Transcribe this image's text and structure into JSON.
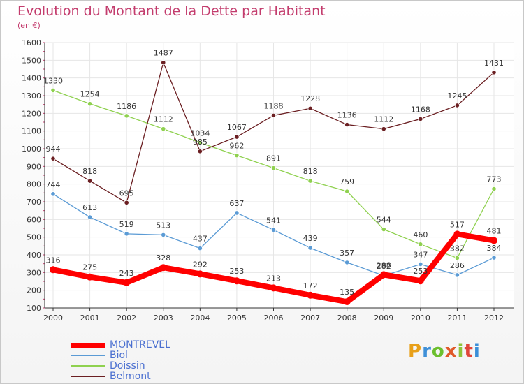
{
  "header": {
    "title": "Evolution du Montant de la Dette par Habitant",
    "subtitle": "(en €)"
  },
  "logo": {
    "text": "Proxiti",
    "colors": [
      "#e8a019",
      "#3f90d8",
      "#6cbf2e",
      "#e05a2a",
      "#8fc33a",
      "#e0453a",
      "#3a8fd8"
    ]
  },
  "colors": {
    "title": "#c33c6d",
    "axis": "#333333",
    "grid": "#e6e6e6"
  },
  "chart_data": {
    "type": "line",
    "title": "Evolution du Montant de la Dette par Habitant",
    "ylabel": "(en €)",
    "xlabel": "",
    "ylim": [
      100,
      1600
    ],
    "yticks": [
      100,
      200,
      300,
      400,
      500,
      600,
      700,
      800,
      900,
      1000,
      1100,
      1200,
      1300,
      1400,
      1500,
      1600
    ],
    "categories": [
      "2000",
      "2001",
      "2002",
      "2003",
      "2004",
      "2005",
      "2006",
      "2007",
      "2008",
      "2009",
      "2010",
      "2011",
      "2012"
    ],
    "grid": true,
    "legend_position": "bottom-left",
    "series": [
      {
        "name": "MONTREVEL",
        "color": "#ff0000",
        "values": [
          316,
          275,
          243,
          328,
          292,
          253,
          213,
          172,
          135,
          288,
          253,
          517,
          481
        ]
      },
      {
        "name": "Biol",
        "color": "#5b9bd5",
        "values": [
          744,
          613,
          519,
          513,
          437,
          637,
          541,
          439,
          357,
          282,
          347,
          286,
          384
        ]
      },
      {
        "name": "Doissin",
        "color": "#8fd14f",
        "values": [
          1330,
          1254,
          1186,
          1112,
          1034,
          962,
          891,
          818,
          759,
          544,
          460,
          382,
          773
        ]
      },
      {
        "name": "Belmont",
        "color": "#6b1f22",
        "values": [
          944,
          818,
          695,
          1487,
          985,
          1067,
          1188,
          1228,
          1136,
          1112,
          1168,
          1245,
          1431
        ]
      }
    ]
  }
}
